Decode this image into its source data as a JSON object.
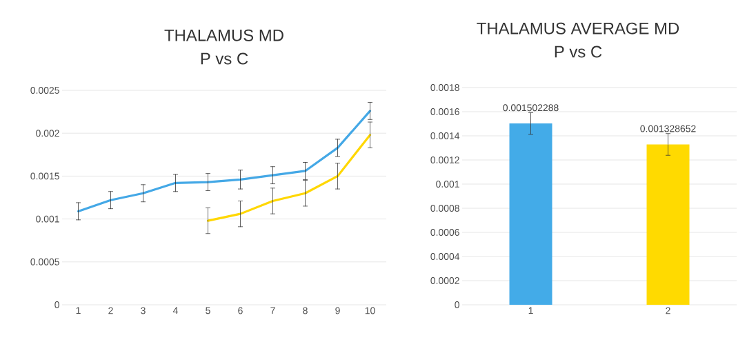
{
  "chart_data": [
    {
      "type": "line",
      "title": "THALAMUS MD",
      "subtitle": "P vs C",
      "categories": [
        "1",
        "2",
        "3",
        "4",
        "5",
        "6",
        "7",
        "8",
        "9",
        "10"
      ],
      "series": [
        {
          "color": "#44a8e6",
          "values": [
            0.00109,
            0.00122,
            0.0013,
            0.00142,
            0.00143,
            0.00146,
            0.00151,
            0.00156,
            0.00183,
            0.00226
          ],
          "errors": [
            0.0001,
            0.0001,
            0.0001,
            0.0001,
            0.0001,
            0.00011,
            0.0001,
            0.0001,
            0.0001,
            0.0001
          ]
        },
        {
          "color": "#ffd700",
          "values": [
            null,
            null,
            null,
            null,
            0.00098,
            0.00106,
            0.00121,
            0.0013,
            0.0015,
            0.00198
          ],
          "errors": [
            null,
            null,
            null,
            null,
            0.00015,
            0.00015,
            0.00015,
            0.00015,
            0.00015,
            0.00015
          ]
        }
      ],
      "ylim": [
        0,
        0.0025
      ],
      "yticks": [
        0,
        0.0005,
        0.001,
        0.0015,
        0.002,
        0.0025
      ],
      "grid": "y",
      "marker": "none"
    },
    {
      "type": "bar",
      "title": "THALAMUS AVERAGE MD",
      "subtitle": "P vs C",
      "categories": [
        "1",
        "2"
      ],
      "values": [
        0.001502288,
        0.001328652
      ],
      "colors": [
        "#43abe8",
        "#ffda00"
      ],
      "errors": [
        9e-05,
        9e-05
      ],
      "value_labels": [
        "0.001502288",
        "0.001328652"
      ],
      "ylim": [
        0,
        0.0018
      ],
      "yticks": [
        0,
        0.0002,
        0.0004,
        0.0006,
        0.0008,
        0.001,
        0.0012,
        0.0014,
        0.0016,
        0.0018
      ],
      "grid": "y"
    }
  ]
}
